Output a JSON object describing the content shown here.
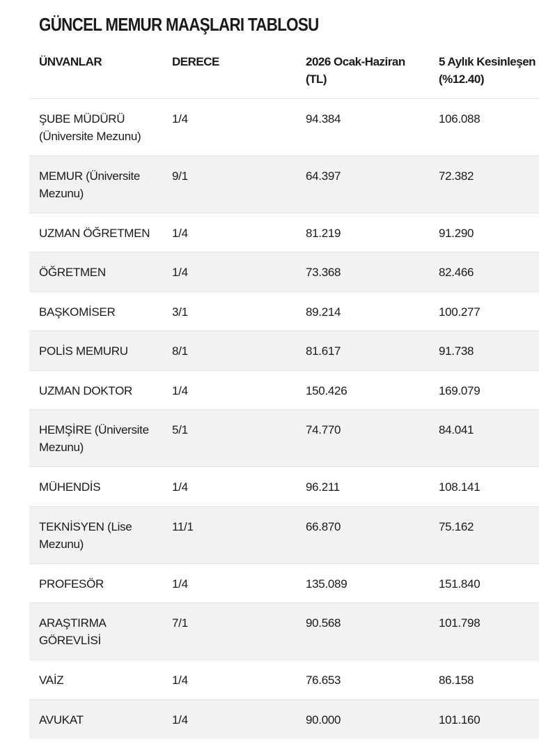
{
  "title": "GÜNCEL MEMUR MAAŞLARI TABLOSU",
  "table": {
    "headers": {
      "title": "ÜNVANLAR",
      "grade": "DERECE",
      "salary_jan_jun_line1": "2026 Ocak-Haziran",
      "salary_jan_jun_line2": "(TL)",
      "salary_final_line1": "5 Aylık Kesinleşen",
      "salary_final_line2": "(%12.40)"
    },
    "rows": [
      {
        "title_line1": "ŞUBE MÜDÜRÜ",
        "title_line2": "(Üniversite Mezunu)",
        "grade": "1/4",
        "salary_jan_jun": "94.384",
        "salary_final": "106.088"
      },
      {
        "title_line1": "MEMUR (Üniversite",
        "title_line2": "Mezunu)",
        "grade": "9/1",
        "salary_jan_jun": "64.397",
        "salary_final": "72.382"
      },
      {
        "title_line1": "UZMAN ÖĞRETMEN",
        "title_line2": "",
        "grade": "1/4",
        "salary_jan_jun": "81.219",
        "salary_final": "91.290"
      },
      {
        "title_line1": "ÖĞRETMEN",
        "title_line2": "",
        "grade": "1/4",
        "salary_jan_jun": "73.368",
        "salary_final": "82.466"
      },
      {
        "title_line1": "BAŞKOMİSER",
        "title_line2": "",
        "grade": "3/1",
        "salary_jan_jun": "89.214",
        "salary_final": "100.277"
      },
      {
        "title_line1": "POLİS MEMURU",
        "title_line2": "",
        "grade": "8/1",
        "salary_jan_jun": "81.617",
        "salary_final": "91.738"
      },
      {
        "title_line1": "UZMAN DOKTOR",
        "title_line2": "",
        "grade": "1/4",
        "salary_jan_jun": "150.426",
        "salary_final": "169.079"
      },
      {
        "title_line1": "HEMŞİRE (Üniversite",
        "title_line2": "Mezunu)",
        "grade": "5/1",
        "salary_jan_jun": "74.770",
        "salary_final": "84.041"
      },
      {
        "title_line1": "MÜHENDİS",
        "title_line2": "",
        "grade": "1/4",
        "salary_jan_jun": "96.211",
        "salary_final": "108.141"
      },
      {
        "title_line1": "TEKNİSYEN (Lise",
        "title_line2": "Mezunu)",
        "grade": "11/1",
        "salary_jan_jun": "66.870",
        "salary_final": "75.162"
      },
      {
        "title_line1": "PROFESÖR",
        "title_line2": "",
        "grade": "1/4",
        "salary_jan_jun": "135.089",
        "salary_final": "151.840"
      },
      {
        "title_line1": "ARAŞTIRMA",
        "title_line2": "GÖREVLİSİ",
        "grade": "7/1",
        "salary_jan_jun": "90.568",
        "salary_final": "101.798"
      },
      {
        "title_line1": "VAİZ",
        "title_line2": "",
        "grade": "1/4",
        "salary_jan_jun": "76.653",
        "salary_final": "86.158"
      },
      {
        "title_line1": "AVUKAT",
        "title_line2": "",
        "grade": "1/4",
        "salary_jan_jun": "90.000",
        "salary_final": "101.160"
      }
    ]
  }
}
